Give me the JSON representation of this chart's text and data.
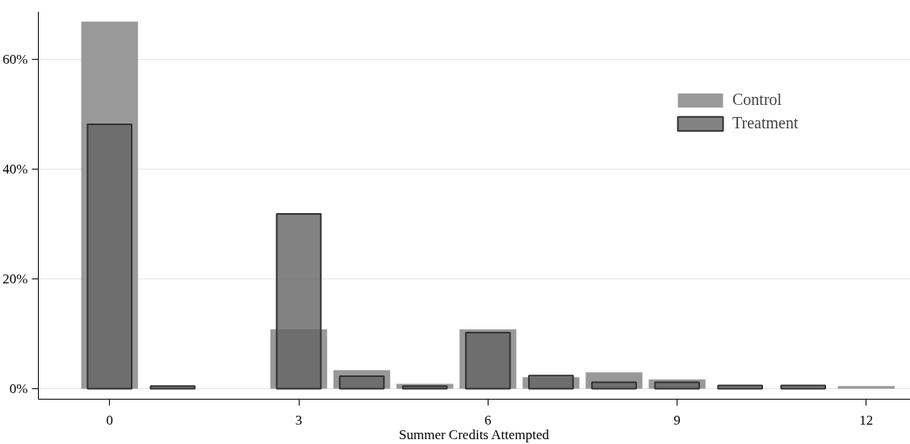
{
  "chart_data": {
    "type": "bar",
    "xlabel": "Summer Credits Attempted",
    "x": [
      0,
      1,
      2,
      3,
      4,
      5,
      6,
      7,
      8,
      9,
      10,
      11,
      12
    ],
    "series": [
      {
        "name": "Control",
        "color": "#999999",
        "values": [
          66.8,
          null,
          null,
          10.8,
          3.4,
          0.9,
          10.8,
          2.1,
          3.0,
          1.7,
          null,
          null,
          0.5
        ]
      },
      {
        "name": "Treatment",
        "color": "#636363",
        "values": [
          48.1,
          0.5,
          null,
          31.8,
          2.3,
          0.5,
          10.2,
          2.4,
          1.2,
          1.2,
          0.6,
          0.6,
          null
        ]
      }
    ],
    "xlim": [
      -1.13,
      12.7
    ],
    "ylim": [
      -1.9,
      68.6
    ],
    "xticks": [
      0,
      3,
      6,
      9,
      12
    ],
    "yticks": [
      {
        "value": 0,
        "label": "0%"
      },
      {
        "value": 20,
        "label": "20%"
      },
      {
        "value": 40,
        "label": "40%"
      },
      {
        "value": 60,
        "label": "60%"
      }
    ],
    "grid": "y",
    "legend": "top right"
  }
}
